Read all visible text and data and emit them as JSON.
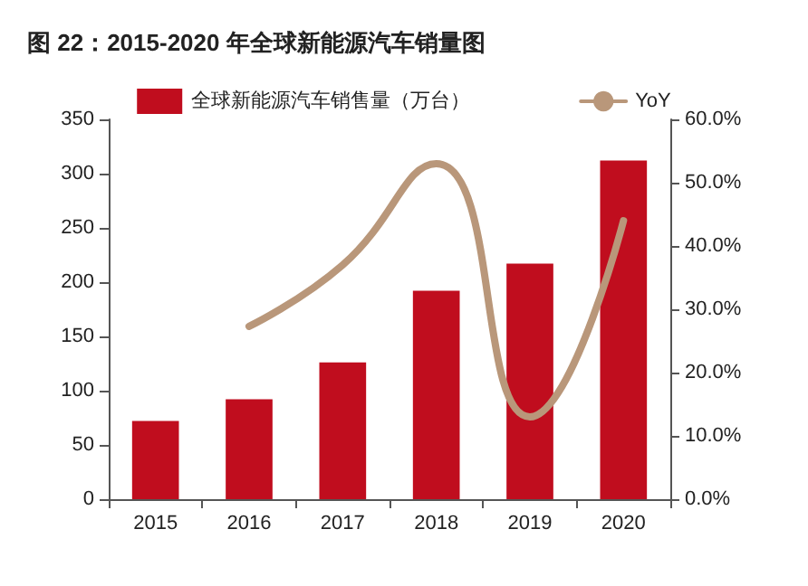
{
  "chart_data": {
    "type": "bar",
    "title": "图 22：2015-2020 年全球新能源汽车销量图",
    "categories": [
      "2015",
      "2016",
      "2017",
      "2018",
      "2019",
      "2020"
    ],
    "series": [
      {
        "name": "全球新能源汽车销售量（万台）",
        "color": "#c00d1e",
        "values": [
          72,
          92,
          126,
          192,
          217,
          312
        ]
      },
      {
        "name": "YoY",
        "type": "line",
        "axis": "y2",
        "color": "#b9977a",
        "values": [
          null,
          27.3,
          37,
          53,
          13,
          44
        ]
      }
    ],
    "ylim": [
      0,
      350
    ],
    "yticks": [
      0,
      50,
      100,
      150,
      200,
      250,
      300,
      350
    ],
    "y2lim": [
      0,
      60
    ],
    "y2ticks": [
      {
        "value": 0,
        "label": "0.0%"
      },
      {
        "value": 10,
        "label": "10.0%"
      },
      {
        "value": 20,
        "label": "20.0%"
      },
      {
        "value": 30,
        "label": "30.0%"
      },
      {
        "value": 40,
        "label": "40.0%"
      },
      {
        "value": 50,
        "label": "50.0%"
      },
      {
        "value": 60,
        "label": "60.0%"
      }
    ],
    "grid": false,
    "legend": "top",
    "marker": "none"
  }
}
